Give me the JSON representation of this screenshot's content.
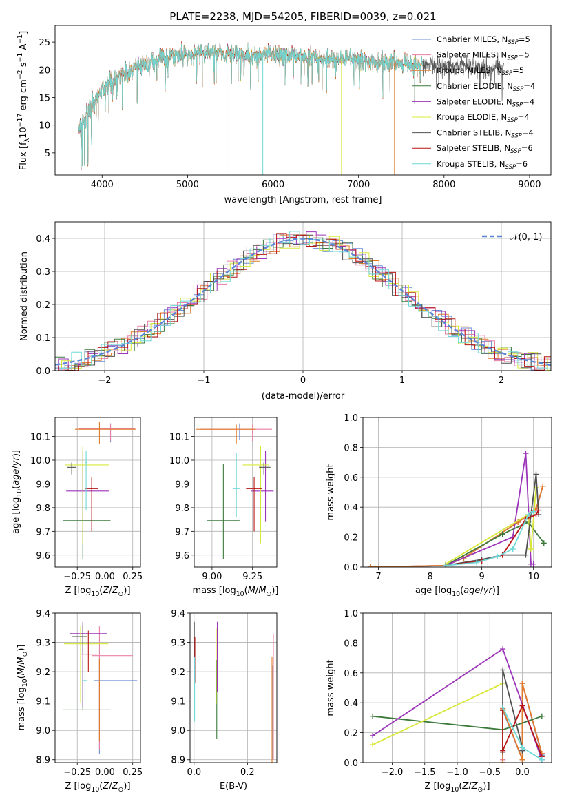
{
  "figure": {
    "title": "PLATE=2238, MJD=54205, FIBERID=0039, z=0.021"
  },
  "colors": {
    "Chabrier MILES": "#6b8ed6",
    "Salpeter MILES": "#ea7fa4",
    "Kroupa MILES": "#e07b2a",
    "Chabrier ELODIE": "#3c7a3c",
    "Salpeter ELODIE": "#9b34b8",
    "Kroupa ELODIE": "#d8e83a",
    "Chabrier STELIB": "#505050",
    "Salpeter STELIB": "#b81414",
    "Kroupa STELIB": "#6fd8d8"
  },
  "legend_labels": [
    "Chabrier MILES, N_SSP=5",
    "Salpeter MILES, N_SSP=5",
    "Kroupa MILES, N_SSP=5",
    "Chabrier ELODIE, N_SSP=4",
    "Salpeter ELODIE, N_SSP=4",
    "Kroupa ELODIE, N_SSP=4",
    "Chabrier STELIB, N_SSP=4",
    "Salpeter STELIB, N_SSP=6",
    "Kroupa STELIB, N_SSP=6"
  ],
  "chart_data": [
    {
      "id": "spectrum",
      "type": "line",
      "xlabel": "wavelength [Angstrom, rest frame]",
      "ylabel": "Flux [f_λ10^-17 erg cm^-2 s^-1 A^-1]",
      "xlim": [
        3450,
        9250
      ],
      "ylim": [
        1,
        28
      ],
      "xticks": [
        "4000",
        "5000",
        "6000",
        "7000",
        "8000",
        "9000"
      ],
      "yticks": [
        "5",
        "10",
        "15",
        "20",
        "25"
      ],
      "legend": "top-right",
      "continuum": {
        "x": [
          3720,
          3800,
          3900,
          4000,
          4100,
          4300,
          4500,
          4700,
          4900,
          5100,
          5300,
          5500,
          5800,
          6100,
          6400,
          6700,
          7000,
          7300,
          7600,
          7900,
          8200,
          8500,
          8700
        ],
        "y": [
          9,
          11.5,
          14,
          16.5,
          18,
          19.5,
          21,
          22.2,
          22.8,
          23,
          23.2,
          22.8,
          22.5,
          22.8,
          22.5,
          22,
          21.8,
          21.4,
          21,
          20.8,
          20.8,
          20.5,
          20.5
        ]
      },
      "spikes": [
        {
          "x": 5460,
          "y": 1,
          "series": "Chabrier STELIB"
        },
        {
          "x": 5880,
          "y": 1,
          "series": "Kroupa STELIB"
        },
        {
          "x": 6800,
          "y": 1,
          "series": "Kroupa ELODIE"
        },
        {
          "x": 7420,
          "y": 1,
          "series": "Kroupa MILES"
        }
      ]
    },
    {
      "id": "residuals",
      "type": "histogram",
      "xlabel": "(data-model)/error",
      "ylabel": "Normed distribution",
      "xlim": [
        -2.5,
        2.5
      ],
      "ylim": [
        0,
        0.45
      ],
      "xticks": [
        "−2",
        "−1",
        "0",
        "1",
        "2"
      ],
      "yticks": [
        "0.0",
        "0.1",
        "0.2",
        "0.3",
        "0.4"
      ],
      "grid": true,
      "bin_width": 0.1,
      "reference": {
        "name": "𝒩(0, 1)",
        "mean": 0,
        "sigma": 1
      },
      "legend": "top-right"
    },
    {
      "id": "age_vs_Z",
      "type": "errorbar",
      "xlabel": "Z [log10(Z/Z⊙)]",
      "ylabel": "age  [log10(age/yr)]",
      "xlim": [
        -0.45,
        0.32
      ],
      "ylim": [
        9.55,
        10.18
      ],
      "xticks": [
        "−0.25",
        "0.00",
        "0.25"
      ],
      "yticks": [
        "9.6",
        "9.7",
        "9.8",
        "9.9",
        "10.0",
        "10.1"
      ],
      "grid": true,
      "points": [
        {
          "series": "Chabrier MILES",
          "x": 0.05,
          "xerr": [
            0.29,
            0.23
          ],
          "y": 10.135,
          "yerr": [
            0.06,
            0.02
          ]
        },
        {
          "series": "Salpeter MILES",
          "x": 0.05,
          "xerr": [
            0.29,
            0.22
          ],
          "y": 10.132,
          "yerr": [
            0.05,
            0.02
          ]
        },
        {
          "series": "Kroupa MILES",
          "x": -0.05,
          "xerr": [
            0.22,
            0.33
          ],
          "y": 10.13,
          "yerr": [
            0.06,
            0.03
          ]
        },
        {
          "series": "Chabrier ELODIE",
          "x": -0.2,
          "xerr": [
            0.18,
            0.25
          ],
          "y": 9.745,
          "yerr": [
            0.16,
            0.24
          ]
        },
        {
          "series": "Salpeter ELODIE",
          "x": -0.2,
          "xerr": [
            0.15,
            0.24
          ],
          "y": 9.87,
          "yerr": [
            0.13,
            0.17
          ]
        },
        {
          "series": "Kroupa ELODIE",
          "x": -0.2,
          "xerr": [
            0.16,
            0.24
          ],
          "y": 9.98,
          "yerr": [
            0.33,
            0.08
          ]
        },
        {
          "series": "Chabrier STELIB",
          "x": -0.3,
          "xerr": [
            0.04,
            0.04
          ],
          "y": 9.97,
          "yerr": [
            0.03,
            0.02
          ]
        },
        {
          "series": "Salpeter STELIB",
          "x": -0.12,
          "xerr": [
            0.06,
            0.06
          ],
          "y": 9.88,
          "yerr": [
            0.18,
            0.05
          ]
        },
        {
          "series": "Kroupa STELIB",
          "x": -0.17,
          "xerr": [
            0.01,
            0.01
          ],
          "y": 9.99,
          "yerr": [
            0.2,
            0.05
          ]
        }
      ]
    },
    {
      "id": "age_vs_mass",
      "type": "errorbar",
      "xlabel": "mass [log10(M/M⊙)]",
      "ylabel": "",
      "xlim": [
        8.89,
        9.4
      ],
      "ylim": [
        9.55,
        10.18
      ],
      "xticks": [
        "9.00",
        "9.25"
      ],
      "yticks": [
        "9.6",
        "9.7",
        "9.8",
        "9.9",
        "10.0",
        "10.1"
      ],
      "grid": true,
      "points": [
        {
          "series": "Chabrier MILES",
          "x": 9.17,
          "xerr": [
            0.24,
            0.13
          ],
          "y": 10.135,
          "yerr": [
            0.05,
            0.02
          ]
        },
        {
          "series": "Salpeter MILES",
          "x": 9.25,
          "xerr": [
            0.32,
            0.12
          ],
          "y": 10.13,
          "yerr": [
            0.05,
            0.02
          ]
        },
        {
          "series": "Kroupa MILES",
          "x": 9.15,
          "xerr": [
            0.25,
            0.12
          ],
          "y": 10.13,
          "yerr": [
            0.06,
            0.02
          ]
        },
        {
          "series": "Chabrier ELODIE",
          "x": 9.07,
          "xerr": [
            0.1,
            0.1
          ],
          "y": 9.745,
          "yerr": [
            0.16,
            0.24
          ]
        },
        {
          "series": "Salpeter ELODIE",
          "x": 9.33,
          "xerr": [
            0.09,
            0.05
          ],
          "y": 9.87,
          "yerr": [
            0.13,
            0.17
          ]
        },
        {
          "series": "Kroupa ELODIE",
          "x": 9.3,
          "xerr": [
            0.11,
            0.05
          ],
          "y": 9.98,
          "yerr": [
            0.33,
            0.08
          ]
        },
        {
          "series": "Chabrier STELIB",
          "x": 9.32,
          "xerr": [
            0.03,
            0.04
          ],
          "y": 9.97,
          "yerr": [
            0.03,
            0.02
          ]
        },
        {
          "series": "Salpeter STELIB",
          "x": 9.26,
          "xerr": [
            0.05,
            0.05
          ],
          "y": 9.88,
          "yerr": [
            0.18,
            0.05
          ]
        },
        {
          "series": "Kroupa STELIB",
          "x": 9.15,
          "xerr": [
            0.02,
            0.02
          ],
          "y": 9.88,
          "yerr": [
            0.12,
            0.15
          ]
        }
      ]
    },
    {
      "id": "weight_vs_age",
      "type": "line",
      "xlabel": "age  [log10(age/yr)]",
      "ylabel": "mass weight",
      "xlim": [
        6.7,
        10.35
      ],
      "ylim": [
        0,
        1
      ],
      "xticks": [
        "7",
        "8",
        "9",
        "10"
      ],
      "yticks": [
        "0.0",
        "0.2",
        "0.4",
        "0.6",
        "0.8",
        "1.0"
      ],
      "grid": true,
      "series": [
        {
          "name": "Chabrier MILES",
          "x": [
            6.85,
            8.3,
            8.65,
            9.7,
            10.05,
            10.18
          ],
          "y": [
            0.0,
            0.01,
            0.06,
            0.3,
            0.38,
            0.54
          ]
        },
        {
          "name": "Salpeter MILES",
          "x": [
            6.85,
            8.3,
            8.65,
            9.7,
            10.05,
            10.18
          ],
          "y": [
            0.0,
            0.01,
            0.06,
            0.3,
            0.38,
            0.54
          ]
        },
        {
          "name": "Kroupa MILES",
          "x": [
            6.85,
            8.3,
            8.65,
            9.7,
            10.05,
            10.18
          ],
          "y": [
            0.0,
            0.01,
            0.06,
            0.3,
            0.39,
            0.54
          ]
        },
        {
          "name": "Chabrier ELODIE",
          "x": [
            8.3,
            9.4,
            9.9,
            10.2
          ],
          "y": [
            0.01,
            0.22,
            0.3,
            0.16
          ]
        },
        {
          "name": "Salpeter ELODIE",
          "x": [
            8.3,
            9.6,
            9.85,
            9.95,
            10.0
          ],
          "y": [
            0.01,
            0.2,
            0.76,
            0.02,
            0.02
          ]
        },
        {
          "name": "Kroupa ELODIE",
          "x": [
            8.3,
            9.9,
            9.95,
            10.05
          ],
          "y": [
            0.02,
            0.35,
            0.12,
            0.53
          ]
        },
        {
          "name": "Chabrier STELIB",
          "x": [
            8.3,
            9.0,
            9.4,
            9.85,
            10.05,
            10.1
          ],
          "y": [
            0.01,
            0.05,
            0.08,
            0.08,
            0.62,
            0.35
          ]
        },
        {
          "name": "Salpeter STELIB",
          "x": [
            8.3,
            9.0,
            9.4,
            9.85,
            10.05,
            10.1
          ],
          "y": [
            0.01,
            0.04,
            0.08,
            0.32,
            0.35,
            0.38
          ]
        },
        {
          "name": "Kroupa STELIB",
          "x": [
            8.3,
            8.9,
            9.3,
            9.6,
            9.9,
            10.0
          ],
          "y": [
            0.01,
            0.03,
            0.07,
            0.12,
            0.35,
            0.37
          ]
        }
      ]
    },
    {
      "id": "mass_vs_Z",
      "type": "errorbar",
      "xlabel": "Z [log10(Z/Z⊙)]",
      "ylabel": "mass [log10(M/M⊙)]",
      "xlim": [
        -0.45,
        0.32
      ],
      "ylim": [
        8.89,
        9.4
      ],
      "xticks": [
        "−0.25",
        "0.00",
        "0.25"
      ],
      "yticks": [
        "8.9",
        "9.0",
        "9.1",
        "9.2",
        "9.3",
        "9.4"
      ],
      "grid": true,
      "points": [
        {
          "series": "Chabrier MILES",
          "x": -0.05,
          "xerr": [
            0.05,
            0.34
          ],
          "y": 9.17,
          "yerr": [
            0.25,
            0.08
          ]
        },
        {
          "series": "Salpeter MILES",
          "x": -0.05,
          "xerr": [
            0.07,
            0.3
          ],
          "y": 9.255,
          "yerr": [
            0.32,
            0.1
          ]
        },
        {
          "series": "Kroupa MILES",
          "x": -0.05,
          "xerr": [
            0.07,
            0.3
          ],
          "y": 9.145,
          "yerr": [
            0.18,
            0.1
          ]
        },
        {
          "series": "Chabrier ELODIE",
          "x": -0.2,
          "xerr": [
            0.18,
            0.25
          ],
          "y": 9.07,
          "yerr": [
            0.0,
            0.17
          ]
        },
        {
          "series": "Salpeter ELODIE",
          "x": -0.2,
          "xerr": [
            0.12,
            0.22
          ],
          "y": 9.33,
          "yerr": [
            0.25,
            0.04
          ]
        },
        {
          "series": "Kroupa ELODIE",
          "x": -0.22,
          "xerr": [
            0.15,
            0.25
          ],
          "y": 9.295,
          "yerr": [
            0.2,
            0.06
          ]
        },
        {
          "series": "Chabrier STELIB",
          "x": -0.2,
          "xerr": [
            0.1,
            0.04
          ],
          "y": 9.32,
          "yerr": [
            0.06,
            0.04
          ]
        },
        {
          "series": "Salpeter STELIB",
          "x": -0.15,
          "xerr": [
            0.07,
            0.08
          ],
          "y": 9.26,
          "yerr": [
            0.06,
            0.08
          ]
        },
        {
          "series": "Kroupa STELIB",
          "x": -0.18,
          "xerr": [
            0.02,
            0.02
          ],
          "y": 9.17,
          "yerr": [
            0.07,
            0.05
          ]
        }
      ]
    },
    {
      "id": "mass_vs_ebv",
      "type": "errorbar",
      "xlabel": "E(B-V)",
      "ylabel": "",
      "xlim": [
        -0.015,
        0.31
      ],
      "ylim": [
        8.89,
        9.4
      ],
      "xticks": [
        "0.0",
        "0.2"
      ],
      "yticks": [
        "8.9",
        "9.0",
        "9.1",
        "9.2",
        "9.3",
        "9.4"
      ],
      "grid": true,
      "points": [
        {
          "series": "Chabrier MILES",
          "x": 0.295,
          "yerr": [
            0.27,
            0.05
          ],
          "y": 9.17
        },
        {
          "series": "Salpeter MILES",
          "x": 0.297,
          "yerr": [
            0.35,
            0.08
          ],
          "y": 9.25
        },
        {
          "series": "Kroupa MILES",
          "x": 0.292,
          "yerr": [
            0.3,
            0.1
          ],
          "y": 9.15
        },
        {
          "series": "Chabrier ELODIE",
          "x": 0.085,
          "yerr": [
            0.1,
            0.17
          ],
          "y": 9.07
        },
        {
          "series": "Salpeter ELODIE",
          "x": 0.087,
          "yerr": [
            0.2,
            0.04
          ],
          "y": 9.33
        },
        {
          "series": "Kroupa ELODIE",
          "x": 0.083,
          "yerr": [
            0.2,
            0.06
          ],
          "y": 9.29
        },
        {
          "series": "Chabrier STELIB",
          "x": 0.001,
          "yerr": [
            0.15,
            0.05
          ],
          "y": 9.32
        },
        {
          "series": "Salpeter STELIB",
          "x": 0.003,
          "yerr": [
            0.1,
            0.06
          ],
          "y": 9.26
        },
        {
          "series": "Kroupa STELIB",
          "x": 0.002,
          "yerr": [
            0.1,
            0.12
          ],
          "y": 9.13
        }
      ]
    },
    {
      "id": "weight_vs_Z",
      "type": "line",
      "xlabel": "Z [log10(Z/Z⊙)]",
      "ylabel": "mass weight",
      "xlim": [
        -2.45,
        0.45
      ],
      "ylim": [
        0,
        1
      ],
      "xticks": [
        "−2.0",
        "−1.5",
        "−1.0",
        "−0.5",
        "0.0"
      ],
      "yticks": [
        "0.0",
        "0.2",
        "0.4",
        "0.6",
        "0.8",
        "1.0"
      ],
      "grid": true,
      "series": [
        {
          "name": "Chabrier MILES",
          "x": [
            -0.3,
            -0.3,
            0.0,
            0.0,
            0.3
          ],
          "y": [
            0.02,
            0.35,
            0.02,
            0.53,
            0.05
          ]
        },
        {
          "name": "Salpeter MILES",
          "x": [
            -0.3,
            -0.3,
            0.0,
            0.0,
            0.3
          ],
          "y": [
            0.02,
            0.36,
            0.02,
            0.53,
            0.06
          ]
        },
        {
          "name": "Kroupa MILES",
          "x": [
            -0.3,
            -0.3,
            0.0,
            0.0,
            0.3
          ],
          "y": [
            0.0,
            0.36,
            0.02,
            0.53,
            0.06
          ]
        },
        {
          "name": "Chabrier ELODIE",
          "x": [
            -2.3,
            -0.3,
            0.3
          ],
          "y": [
            0.31,
            0.22,
            0.31
          ]
        },
        {
          "name": "Salpeter ELODIE",
          "x": [
            -2.3,
            -0.3,
            0.3
          ],
          "y": [
            0.18,
            0.76,
            0.02
          ]
        },
        {
          "name": "Kroupa ELODIE",
          "x": [
            -2.3,
            -0.3
          ],
          "y": [
            0.12,
            0.53
          ]
        },
        {
          "name": "Chabrier STELIB",
          "x": [
            -0.3,
            -0.3,
            0.0,
            0.0
          ],
          "y": [
            0.07,
            0.62,
            0.1,
            0.08
          ]
        },
        {
          "name": "Salpeter STELIB",
          "x": [
            -0.3,
            -0.3,
            0.0,
            0.3
          ],
          "y": [
            0.35,
            0.08,
            0.38,
            0.04
          ]
        },
        {
          "name": "Kroupa STELIB",
          "x": [
            -0.3,
            0.0,
            0.3
          ],
          "y": [
            0.37,
            0.1,
            0.02
          ]
        }
      ]
    }
  ]
}
